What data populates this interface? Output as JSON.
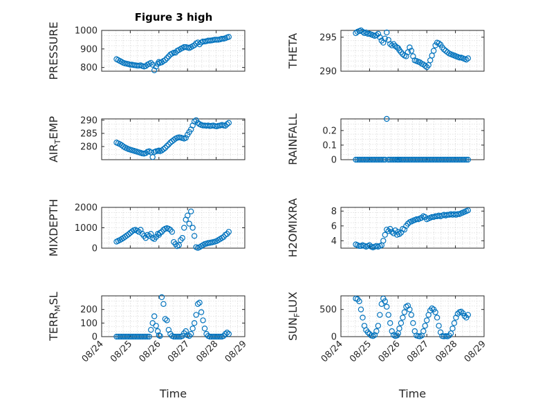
{
  "figure": {
    "title": "Figure 3 high",
    "colors": {
      "marker": "#0072BD",
      "axis": "#262626",
      "grid": "#d9d9d9",
      "background": "#ffffff"
    }
  },
  "chart_data": [
    {
      "type": "scatter",
      "ylabel": "PRESSURE",
      "ylim": [
        780,
        1000
      ],
      "yticks": [
        800,
        900,
        1000
      ],
      "xlim": [
        0,
        5
      ],
      "xticks": [
        "08/24",
        "08/25",
        "08/26",
        "08/27",
        "08/28",
        "08/29"
      ],
      "show_x_tick_labels": false,
      "x": [
        0.52,
        0.58,
        0.64,
        0.7,
        0.76,
        0.82,
        0.88,
        0.94,
        1.0,
        1.06,
        1.12,
        1.18,
        1.24,
        1.3,
        1.36,
        1.42,
        1.48,
        1.54,
        1.6,
        1.66,
        1.72,
        1.78,
        1.84,
        1.9,
        1.96,
        2.0,
        2.04,
        2.1,
        2.16,
        2.22,
        2.28,
        2.34,
        2.4,
        2.46,
        2.52,
        2.58,
        2.64,
        2.7,
        2.76,
        2.82,
        2.88,
        2.94,
        3.0,
        3.06,
        3.12,
        3.18,
        3.24,
        3.3,
        3.36,
        3.42,
        3.48,
        3.54,
        3.6,
        3.66,
        3.72,
        3.78,
        3.84,
        3.9,
        3.96,
        4.02,
        4.08,
        4.14,
        4.2,
        4.26,
        4.32,
        4.38,
        4.44
      ],
      "y": [
        845,
        840,
        835,
        830,
        825,
        822,
        820,
        818,
        815,
        815,
        813,
        812,
        810,
        810,
        812,
        808,
        805,
        808,
        815,
        820,
        825,
        815,
        785,
        805,
        820,
        830,
        825,
        828,
        835,
        840,
        850,
        860,
        870,
        875,
        880,
        880,
        890,
        895,
        900,
        905,
        910,
        910,
        908,
        905,
        910,
        915,
        920,
        930,
        935,
        925,
        935,
        940,
        940,
        942,
        945,
        945,
        946,
        948,
        950,
        950,
        950,
        952,
        955,
        955,
        958,
        962,
        965
      ]
    },
    {
      "type": "scatter",
      "ylabel": "THETA",
      "ylim": [
        290,
        296
      ],
      "yticks": [
        290,
        295
      ],
      "xlim": [
        0,
        5
      ],
      "xticks": [
        "08/24",
        "08/25",
        "08/26",
        "08/27",
        "08/28",
        "08/29"
      ],
      "show_x_tick_labels": false,
      "x": [
        0.52,
        0.58,
        0.64,
        0.7,
        0.76,
        0.82,
        0.88,
        0.94,
        1.0,
        1.06,
        1.12,
        1.18,
        1.24,
        1.3,
        1.36,
        1.42,
        1.48,
        1.54,
        1.6,
        1.66,
        1.72,
        1.78,
        1.84,
        1.9,
        1.96,
        2.0,
        2.04,
        2.1,
        2.16,
        2.22,
        2.28,
        2.34,
        2.4,
        2.46,
        2.52,
        2.58,
        2.64,
        2.7,
        2.76,
        2.82,
        2.88,
        2.94,
        3.0,
        3.06,
        3.12,
        3.18,
        3.24,
        3.3,
        3.36,
        3.42,
        3.48,
        3.54,
        3.6,
        3.66,
        3.72,
        3.78,
        3.84,
        3.9,
        3.96,
        4.02,
        4.08,
        4.14,
        4.2,
        4.26,
        4.32,
        4.38,
        4.44
      ],
      "y": [
        295.6,
        295.8,
        295.9,
        296.0,
        295.8,
        295.6,
        295.7,
        295.5,
        295.5,
        295.4,
        295.3,
        295.2,
        295.3,
        295.5,
        295.0,
        294.5,
        294.2,
        294.8,
        295.7,
        294.6,
        294.0,
        293.8,
        294.0,
        293.7,
        293.5,
        293.4,
        293.1,
        292.8,
        292.5,
        292.3,
        292.2,
        292.8,
        293.5,
        293.0,
        292.2,
        291.6,
        291.5,
        291.4,
        291.3,
        291.1,
        291.0,
        290.8,
        290.6,
        290.9,
        291.6,
        292.3,
        293.0,
        293.8,
        294.2,
        294.1,
        293.9,
        293.5,
        293.2,
        293.0,
        292.8,
        292.6,
        292.5,
        292.4,
        292.3,
        292.2,
        292.1,
        292.0,
        292.0,
        291.9,
        291.8,
        291.7,
        291.9
      ]
    },
    {
      "type": "scatter",
      "ylabel": "AIR_TEMP",
      "ylabel_main": "AIR",
      "ylabel_sub": "T",
      "ylabel_tail": "EMP",
      "ylim": [
        275,
        290.5
      ],
      "yticks": [
        280,
        285,
        290
      ],
      "xlim": [
        0,
        5
      ],
      "xticks": [
        "08/24",
        "08/25",
        "08/26",
        "08/27",
        "08/28",
        "08/29"
      ],
      "show_x_tick_labels": false,
      "x": [
        0.52,
        0.58,
        0.64,
        0.7,
        0.76,
        0.82,
        0.88,
        0.94,
        1.0,
        1.06,
        1.12,
        1.18,
        1.24,
        1.3,
        1.36,
        1.42,
        1.48,
        1.54,
        1.6,
        1.66,
        1.72,
        1.78,
        1.84,
        1.9,
        1.96,
        2.0,
        2.04,
        2.1,
        2.16,
        2.22,
        2.28,
        2.34,
        2.4,
        2.46,
        2.52,
        2.58,
        2.64,
        2.7,
        2.76,
        2.82,
        2.88,
        2.94,
        3.0,
        3.06,
        3.12,
        3.18,
        3.24,
        3.3,
        3.36,
        3.42,
        3.48,
        3.54,
        3.6,
        3.66,
        3.72,
        3.78,
        3.84,
        3.9,
        3.96,
        4.02,
        4.08,
        4.14,
        4.2,
        4.26,
        4.32,
        4.38,
        4.44
      ],
      "y": [
        281.5,
        281.2,
        280.9,
        280.5,
        280.0,
        279.6,
        279.3,
        279.0,
        278.8,
        278.6,
        278.4,
        278.2,
        278.0,
        277.8,
        277.6,
        277.4,
        277.3,
        277.5,
        278.0,
        278.2,
        277.8,
        276.0,
        277.9,
        278.2,
        278.3,
        278.5,
        278.2,
        278.5,
        279.0,
        279.5,
        280.2,
        280.8,
        281.5,
        282.0,
        282.5,
        283.0,
        283.3,
        283.5,
        283.4,
        283.2,
        283.0,
        283.3,
        284.5,
        285.5,
        286.5,
        288.0,
        289.5,
        290.0,
        289.0,
        288.5,
        288.2,
        288.0,
        288.0,
        287.9,
        288.0,
        287.8,
        287.9,
        288.0,
        287.8,
        287.7,
        287.9,
        288.0,
        288.2,
        288.0,
        287.9,
        288.5,
        289.0
      ]
    },
    {
      "type": "scatter",
      "ylabel": "RAINFALL",
      "ylim": [
        0,
        0.28
      ],
      "yticks": [
        0,
        0.1,
        0.2
      ],
      "ytick_labels": [
        "0",
        "0.1",
        "0.2"
      ],
      "xlim": [
        0,
        5
      ],
      "xticks": [
        "08/24",
        "08/25",
        "08/26",
        "08/27",
        "08/28",
        "08/29"
      ],
      "show_x_tick_labels": false,
      "x": [
        0.52,
        0.58,
        0.64,
        0.7,
        0.76,
        0.82,
        0.88,
        0.94,
        1.0,
        1.06,
        1.12,
        1.18,
        1.24,
        1.3,
        1.36,
        1.42,
        1.48,
        1.54,
        1.6,
        1.66,
        1.72,
        1.78,
        1.84,
        1.9,
        1.96,
        2.0,
        2.04,
        2.1,
        2.16,
        2.22,
        2.28,
        2.34,
        2.4,
        2.46,
        2.52,
        2.58,
        2.64,
        2.7,
        2.76,
        2.82,
        2.88,
        2.94,
        3.0,
        3.06,
        3.12,
        3.18,
        3.24,
        3.3,
        3.36,
        3.42,
        3.48,
        3.54,
        3.6,
        3.66,
        3.72,
        3.78,
        3.84,
        3.9,
        3.96,
        4.02,
        4.08,
        4.14,
        4.2,
        4.26,
        4.32,
        4.38,
        4.44
      ],
      "y": [
        0,
        0,
        0,
        0,
        0,
        0,
        0,
        0,
        0,
        0,
        0,
        0,
        0,
        0,
        0,
        0,
        0,
        0,
        0.28,
        0,
        0,
        0,
        0,
        0,
        0,
        0,
        0,
        0,
        0,
        0,
        0,
        0,
        0,
        0,
        0,
        0,
        0,
        0,
        0,
        0,
        0,
        0,
        0,
        0,
        0,
        0,
        0,
        0,
        0,
        0,
        0,
        0,
        0,
        0,
        0,
        0,
        0,
        0,
        0,
        0,
        0,
        0,
        0,
        0,
        0,
        0,
        0
      ]
    },
    {
      "type": "scatter",
      "ylabel": "MIXDEPTH",
      "ylim": [
        0,
        2000
      ],
      "yticks": [
        0,
        1000,
        2000
      ],
      "xlim": [
        0,
        5
      ],
      "xticks": [
        "08/24",
        "08/25",
        "08/26",
        "08/27",
        "08/28",
        "08/29"
      ],
      "show_x_tick_labels": false,
      "x": [
        0.52,
        0.58,
        0.64,
        0.7,
        0.76,
        0.82,
        0.88,
        0.94,
        1.0,
        1.06,
        1.12,
        1.18,
        1.24,
        1.3,
        1.36,
        1.42,
        1.48,
        1.54,
        1.6,
        1.66,
        1.72,
        1.78,
        1.84,
        1.9,
        1.96,
        2.0,
        2.04,
        2.1,
        2.16,
        2.22,
        2.28,
        2.34,
        2.4,
        2.46,
        2.52,
        2.58,
        2.64,
        2.7,
        2.76,
        2.82,
        2.88,
        2.94,
        3.0,
        3.06,
        3.12,
        3.18,
        3.24,
        3.3,
        3.36,
        3.42,
        3.48,
        3.54,
        3.6,
        3.66,
        3.72,
        3.78,
        3.84,
        3.9,
        3.96,
        4.02,
        4.08,
        4.14,
        4.2,
        4.26,
        4.32,
        4.38,
        4.44
      ],
      "y": [
        320,
        360,
        400,
        450,
        500,
        560,
        620,
        680,
        750,
        820,
        880,
        900,
        850,
        800,
        900,
        700,
        600,
        500,
        650,
        600,
        700,
        500,
        450,
        550,
        700,
        650,
        750,
        800,
        900,
        950,
        980,
        950,
        900,
        800,
        300,
        200,
        100,
        150,
        400,
        500,
        1000,
        1400,
        1600,
        1200,
        1800,
        1000,
        600,
        50,
        10,
        50,
        100,
        150,
        200,
        220,
        250,
        260,
        280,
        300,
        320,
        350,
        400,
        450,
        500,
        550,
        650,
        700,
        800
      ]
    },
    {
      "type": "scatter",
      "ylabel": "H2OMIXRA",
      "ylim": [
        3,
        8.5
      ],
      "yticks": [
        4,
        6,
        8
      ],
      "xlim": [
        0,
        5
      ],
      "xticks": [
        "08/24",
        "08/25",
        "08/26",
        "08/27",
        "08/28",
        "08/29"
      ],
      "show_x_tick_labels": false,
      "x": [
        0.52,
        0.58,
        0.64,
        0.7,
        0.76,
        0.82,
        0.88,
        0.94,
        1.0,
        1.06,
        1.12,
        1.18,
        1.24,
        1.3,
        1.36,
        1.42,
        1.48,
        1.54,
        1.6,
        1.66,
        1.72,
        1.78,
        1.84,
        1.9,
        1.96,
        2.0,
        2.04,
        2.1,
        2.16,
        2.22,
        2.28,
        2.34,
        2.4,
        2.46,
        2.52,
        2.58,
        2.64,
        2.7,
        2.76,
        2.82,
        2.88,
        2.94,
        3.0,
        3.06,
        3.12,
        3.18,
        3.24,
        3.3,
        3.36,
        3.42,
        3.48,
        3.54,
        3.6,
        3.66,
        3.72,
        3.78,
        3.84,
        3.9,
        3.96,
        4.02,
        4.08,
        4.14,
        4.2,
        4.26,
        4.32,
        4.38,
        4.44
      ],
      "y": [
        3.5,
        3.4,
        3.3,
        3.3,
        3.4,
        3.3,
        3.2,
        3.3,
        3.4,
        3.2,
        3.1,
        3.2,
        3.3,
        3.2,
        3.3,
        3.4,
        4.0,
        4.8,
        5.5,
        5.3,
        5.6,
        5.2,
        5.0,
        5.4,
        4.8,
        5.2,
        4.9,
        5.1,
        5.6,
        5.5,
        6.0,
        6.3,
        6.5,
        6.6,
        6.7,
        6.8,
        6.9,
        6.9,
        7.0,
        7.1,
        7.3,
        7.2,
        6.9,
        7.0,
        7.1,
        7.2,
        7.2,
        7.3,
        7.3,
        7.4,
        7.3,
        7.4,
        7.5,
        7.4,
        7.5,
        7.5,
        7.6,
        7.5,
        7.6,
        7.5,
        7.6,
        7.6,
        7.7,
        7.8,
        7.9,
        8.0,
        8.1
      ]
    },
    {
      "type": "scatter",
      "ylabel": "TERR_MSL",
      "ylabel_main": "TERR",
      "ylabel_sub": "M",
      "ylabel_tail": "SL",
      "ylim": [
        0,
        300
      ],
      "yticks": [
        0,
        100,
        200
      ],
      "xlim": [
        0,
        5
      ],
      "xticks": [
        "08/24",
        "08/25",
        "08/26",
        "08/27",
        "08/28",
        "08/29"
      ],
      "show_x_tick_labels": true,
      "xlabel": "Time",
      "x": [
        0.52,
        0.58,
        0.64,
        0.7,
        0.76,
        0.82,
        0.88,
        0.94,
        1.0,
        1.06,
        1.12,
        1.18,
        1.24,
        1.3,
        1.36,
        1.42,
        1.48,
        1.54,
        1.6,
        1.66,
        1.72,
        1.78,
        1.84,
        1.9,
        1.96,
        2.0,
        2.04,
        2.1,
        2.16,
        2.22,
        2.28,
        2.34,
        2.4,
        2.46,
        2.52,
        2.58,
        2.64,
        2.7,
        2.76,
        2.82,
        2.88,
        2.94,
        3.0,
        3.06,
        3.12,
        3.18,
        3.24,
        3.3,
        3.36,
        3.42,
        3.48,
        3.54,
        3.6,
        3.66,
        3.72,
        3.78,
        3.84,
        3.9,
        3.96,
        4.02,
        4.08,
        4.14,
        4.2,
        4.26,
        4.32,
        4.38,
        4.44
      ],
      "y": [
        0,
        0,
        0,
        0,
        0,
        0,
        0,
        0,
        0,
        0,
        0,
        0,
        0,
        0,
        0,
        0,
        0,
        0,
        0,
        0,
        50,
        100,
        150,
        80,
        40,
        10,
        5,
        290,
        240,
        130,
        120,
        50,
        20,
        5,
        0,
        0,
        0,
        0,
        0,
        5,
        25,
        40,
        10,
        5,
        20,
        60,
        100,
        160,
        240,
        250,
        180,
        120,
        60,
        20,
        5,
        0,
        0,
        0,
        0,
        0,
        0,
        0,
        0,
        5,
        20,
        30,
        20
      ]
    },
    {
      "type": "scatter",
      "ylabel": "SUN_FLUX",
      "ylabel_main": "SUN",
      "ylabel_sub": "F",
      "ylabel_tail": "LUX",
      "ylim": [
        0,
        750
      ],
      "yticks": [
        0,
        500
      ],
      "xlim": [
        0,
        5
      ],
      "xticks": [
        "08/24",
        "08/25",
        "08/26",
        "08/27",
        "08/28",
        "08/29"
      ],
      "show_x_tick_labels": true,
      "xlabel": "Time",
      "x": [
        0.52,
        0.58,
        0.64,
        0.7,
        0.76,
        0.82,
        0.88,
        0.94,
        1.0,
        1.06,
        1.12,
        1.18,
        1.24,
        1.3,
        1.36,
        1.42,
        1.48,
        1.54,
        1.6,
        1.66,
        1.72,
        1.78,
        1.84,
        1.9,
        1.96,
        2.0,
        2.04,
        2.1,
        2.16,
        2.22,
        2.28,
        2.34,
        2.4,
        2.46,
        2.52,
        2.58,
        2.64,
        2.7,
        2.76,
        2.82,
        2.88,
        2.94,
        3.0,
        3.06,
        3.12,
        3.18,
        3.24,
        3.3,
        3.36,
        3.42,
        3.48,
        3.54,
        3.6,
        3.66,
        3.72,
        3.78,
        3.84,
        3.9,
        3.96,
        4.02,
        4.08,
        4.14,
        4.2,
        4.26,
        4.32,
        4.38,
        4.44
      ],
      "y": [
        700,
        690,
        650,
        500,
        350,
        200,
        120,
        80,
        50,
        20,
        10,
        30,
        100,
        200,
        400,
        600,
        700,
        650,
        550,
        400,
        250,
        100,
        30,
        10,
        20,
        60,
        150,
        250,
        350,
        450,
        550,
        570,
        500,
        400,
        250,
        100,
        20,
        10,
        5,
        20,
        100,
        200,
        300,
        400,
        480,
        520,
        500,
        450,
        350,
        200,
        80,
        10,
        5,
        10,
        5,
        20,
        60,
        150,
        250,
        350,
        420,
        450,
        460,
        430,
        380,
        350,
        400
      ]
    }
  ]
}
